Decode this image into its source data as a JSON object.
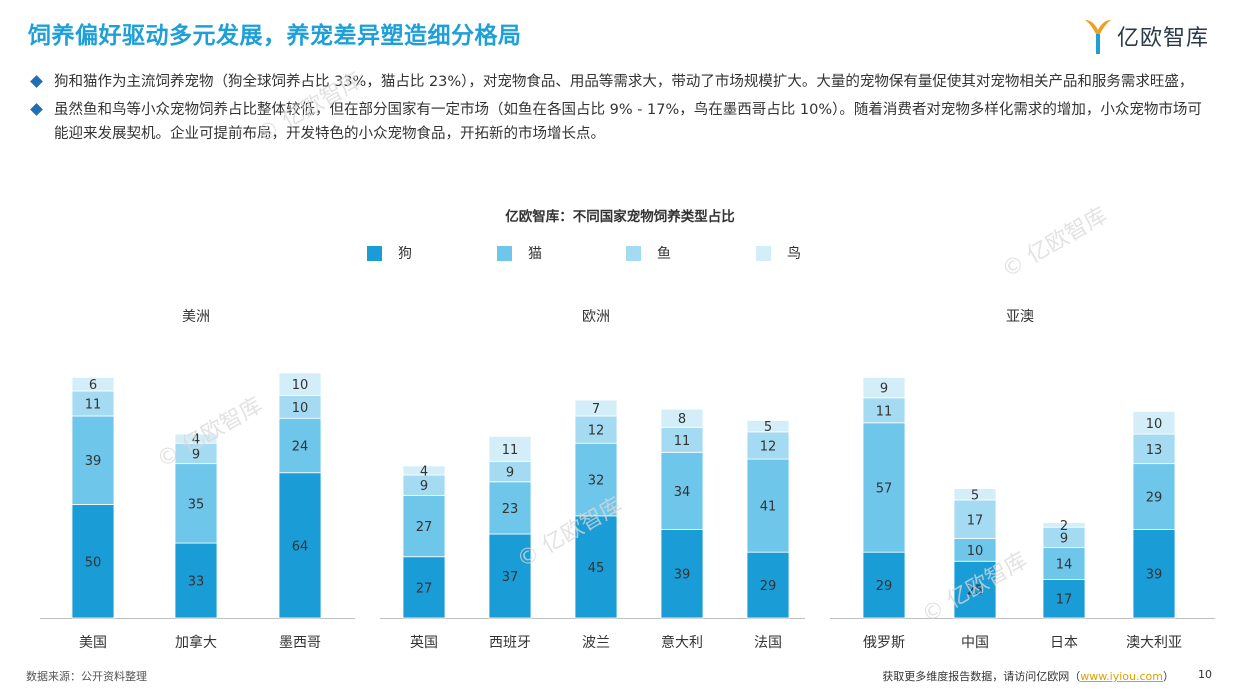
{
  "header": {
    "title": "饲养偏好驱动多元发展，养宠差异塑造细分格局",
    "logo_text": "亿欧智库"
  },
  "bullets": [
    "狗和猫作为主流饲养宠物（狗全球饲养占比 33%，猫占比 23%），对宠物食品、用品等需求大，带动了市场规模扩大。大量的宠物保有量促使其对宠物相关产品和服务需求旺盛，",
    "虽然鱼和鸟等小众宠物饲养占比整体较低，但在部分国家有一定市场（如鱼在各国占比 9% - 17%，鸟在墨西哥占比 10%）。随着消费者对宠物多样化需求的增加，小众宠物市场可能迎来发展契机。企业可提前布局，开发特色的小众宠物食品，开拓新的市场增长点。"
  ],
  "watermark": "© 亿欧智库",
  "footer": {
    "source": "数据来源：公开资料整理",
    "visit_prefix": "获取更多维度报告数据，请访问亿欧网（",
    "visit_link": "www.iyiou.com",
    "visit_suffix": "）",
    "page": "10"
  },
  "colors": {
    "title": "#1e9fd8",
    "dog": "#1a9dd6",
    "cat": "#6ec6ea",
    "fish": "#a5dbf2",
    "bird": "#d3eef9"
  },
  "chart_data": {
    "type": "bar",
    "stacked": true,
    "title": "亿欧智库：不同国家宠物饲养类型占比",
    "legend": [
      "狗",
      "猫",
      "鱼",
      "鸟"
    ],
    "legend_placement": "top-center",
    "groups": [
      {
        "name": "美洲",
        "categories": [
          "美国",
          "加拿大",
          "墨西哥"
        ],
        "series": [
          {
            "name": "狗",
            "values": [
              50,
              33,
              64
            ]
          },
          {
            "name": "猫",
            "values": [
              39,
              35,
              24
            ]
          },
          {
            "name": "鱼",
            "values": [
              11,
              9,
              10
            ]
          },
          {
            "name": "鸟",
            "values": [
              6,
              4,
              10
            ]
          }
        ]
      },
      {
        "name": "欧洲",
        "categories": [
          "英国",
          "西班牙",
          "波兰",
          "意大利",
          "法国"
        ],
        "series": [
          {
            "name": "狗",
            "values": [
              27,
              37,
              45,
              39,
              29
            ]
          },
          {
            "name": "猫",
            "values": [
              27,
              23,
              32,
              34,
              41
            ]
          },
          {
            "name": "鱼",
            "values": [
              9,
              9,
              12,
              11,
              12
            ]
          },
          {
            "name": "鸟",
            "values": [
              4,
              11,
              7,
              8,
              5
            ]
          }
        ]
      },
      {
        "name": "亚澳",
        "categories": [
          "俄罗斯",
          "中国",
          "日本",
          "澳大利亚"
        ],
        "series": [
          {
            "name": "狗",
            "values": [
              29,
              25,
              17,
              39
            ]
          },
          {
            "name": "猫",
            "values": [
              57,
              10,
              14,
              29
            ]
          },
          {
            "name": "鱼",
            "values": [
              11,
              17,
              9,
              13
            ]
          },
          {
            "name": "鸟",
            "values": [
              9,
              5,
              2,
              10
            ]
          }
        ]
      }
    ]
  }
}
